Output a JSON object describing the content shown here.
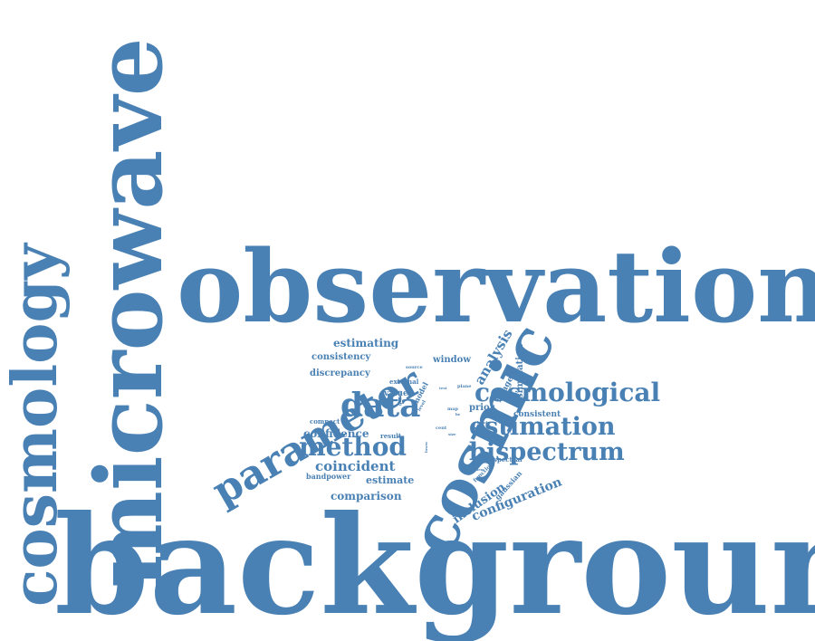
{
  "color": "#4a81b4",
  "words": [
    {
      "text": "background",
      "weight": 100,
      "orientation": "horizontal"
    },
    {
      "text": "observation",
      "weight": 80,
      "orientation": "horizontal"
    },
    {
      "text": "microwave",
      "weight": 70,
      "orientation": "vertical"
    },
    {
      "text": "cosmology",
      "weight": 45,
      "orientation": "vertical"
    },
    {
      "text": "cosmic",
      "weight": 45,
      "orientation": "rotated"
    },
    {
      "text": "parameter",
      "weight": 30,
      "orientation": "rotated"
    },
    {
      "text": "data",
      "weight": 22,
      "orientation": "horizontal"
    },
    {
      "text": "cosmological",
      "weight": 18,
      "orientation": "horizontal"
    },
    {
      "text": "estimation",
      "weight": 17,
      "orientation": "horizontal"
    },
    {
      "text": "bispectrum",
      "weight": 17,
      "orientation": "horizontal"
    },
    {
      "text": "method",
      "weight": 17,
      "orientation": "horizontal"
    },
    {
      "text": "analysis",
      "weight": 10,
      "orientation": "rotated"
    },
    {
      "text": "configuration",
      "weight": 9,
      "orientation": "rotated"
    },
    {
      "text": "coincident",
      "weight": 9,
      "orientation": "horizontal"
    },
    {
      "text": "inclusion",
      "weight": 8,
      "orientation": "rotated"
    },
    {
      "text": "comparison",
      "weight": 7,
      "orientation": "horizontal"
    },
    {
      "text": "confidence",
      "weight": 7,
      "orientation": "horizontal"
    },
    {
      "text": "estimate",
      "weight": 7,
      "orientation": "horizontal"
    },
    {
      "text": "simulation",
      "weight": 6,
      "orientation": "vertical"
    },
    {
      "text": "estimating",
      "weight": 6,
      "orientation": "horizontal"
    },
    {
      "text": "consistency",
      "weight": 5,
      "orientation": "horizontal"
    },
    {
      "text": "discrepancy",
      "weight": 5,
      "orientation": "horizontal"
    },
    {
      "text": "window",
      "weight": 5,
      "orientation": "horizontal"
    },
    {
      "text": "imager",
      "weight": 5,
      "orientation": "rotated"
    },
    {
      "text": "bandpower",
      "weight": 4,
      "orientation": "horizontal"
    },
    {
      "text": "value",
      "weight": 4,
      "orientation": "horizontal"
    },
    {
      "text": "prior",
      "weight": 4,
      "orientation": "horizontal"
    },
    {
      "text": "consistent",
      "weight": 4,
      "orientation": "horizontal"
    },
    {
      "text": "gaussian",
      "weight": 4,
      "orientation": "rotated"
    },
    {
      "text": "model",
      "weight": 3,
      "orientation": "rotated"
    },
    {
      "text": "external",
      "weight": 3,
      "orientation": "horizontal"
    },
    {
      "text": "compact",
      "weight": 3,
      "orientation": "horizontal"
    },
    {
      "text": "result",
      "weight": 3,
      "orientation": "horizontal"
    },
    {
      "text": "spectral",
      "weight": 3,
      "orientation": "horizontal"
    },
    {
      "text": "function",
      "weight": 2,
      "orientation": "rotated"
    },
    {
      "text": "source",
      "weight": 2,
      "orientation": "horizontal"
    },
    {
      "text": "group",
      "weight": 2,
      "orientation": "vertical"
    },
    {
      "text": "level",
      "weight": 2,
      "orientation": "rotated"
    },
    {
      "text": "plane",
      "weight": 2,
      "orientation": "horizontal"
    },
    {
      "text": "map",
      "weight": 2,
      "orientation": "horizontal"
    },
    {
      "text": "cent",
      "weight": 1,
      "orientation": "horizontal"
    },
    {
      "text": "index",
      "weight": 1,
      "orientation": "horizontal"
    },
    {
      "text": "band",
      "weight": 1,
      "orientation": "horizontal"
    },
    {
      "text": "size",
      "weight": 1,
      "orientation": "horizontal"
    },
    {
      "text": "lower",
      "weight": 1,
      "orientation": "vertical"
    },
    {
      "text": "be",
      "weight": 1,
      "orientation": "horizontal"
    },
    {
      "text": "test",
      "weight": 1,
      "orientation": "horizontal"
    }
  ]
}
